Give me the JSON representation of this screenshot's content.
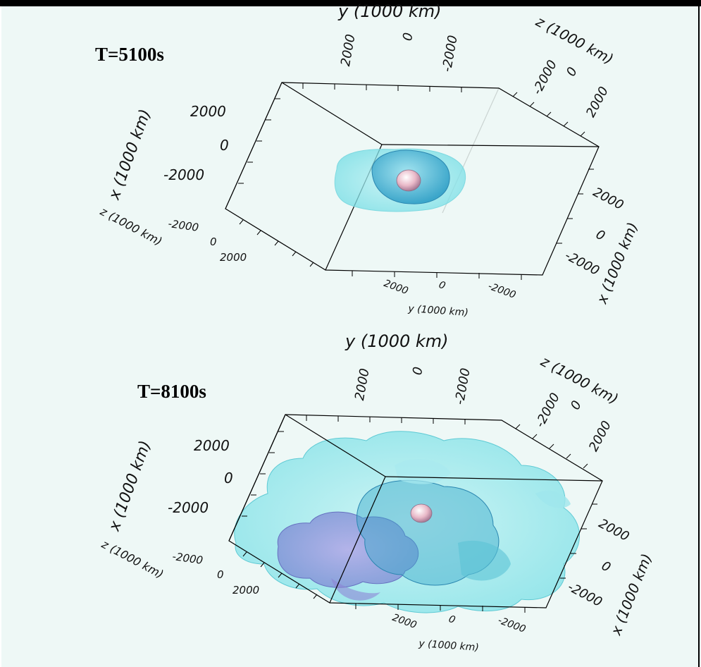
{
  "panels": [
    {
      "time_label": "T=5100s",
      "axes": {
        "y_top": {
          "title": "y (1000 km)",
          "ticks": [
            "2000",
            "0",
            "-2000"
          ]
        },
        "z_top": {
          "title": "z (1000 km)",
          "ticks": [
            "-2000",
            "0",
            "2000"
          ]
        },
        "x_left": {
          "title": "x (1000 km)",
          "ticks": [
            "2000",
            "0",
            "-2000"
          ]
        },
        "z_left": {
          "title": "z (1000 km)",
          "ticks": [
            "-2000",
            "0",
            "2000"
          ]
        },
        "x_right": {
          "title": "x (1000 km)",
          "ticks": [
            "2000",
            "0",
            "-2000"
          ]
        },
        "y_bottom": {
          "title": "y (1000 km)",
          "ticks": [
            "2000",
            "0",
            "-2000"
          ]
        }
      }
    },
    {
      "time_label": "T=8100s",
      "axes": {
        "y_top": {
          "title": "y (1000 km)",
          "ticks": [
            "2000",
            "0",
            "-2000"
          ]
        },
        "z_top": {
          "title": "z (1000 km)",
          "ticks": [
            "-2000",
            "0",
            "2000"
          ]
        },
        "x_left": {
          "title": "x (1000 km)",
          "ticks": [
            "2000",
            "0",
            "-2000"
          ]
        },
        "z_left": {
          "title": "z (1000 km)",
          "ticks": [
            "-2000",
            "0",
            "2000"
          ]
        },
        "x_right": {
          "title": "x (1000 km)",
          "ticks": [
            "2000",
            "0",
            "-2000"
          ]
        },
        "y_bottom": {
          "title": "y (1000 km)",
          "ticks": [
            "2000",
            "0",
            "-2000"
          ]
        }
      }
    }
  ],
  "colors": {
    "background": "#eef8f6",
    "outer_shell": "#7fe6ea",
    "inner_shell": "#3fb6d8",
    "core": "#e8b8c8",
    "inner_mix": "#8a8fd8",
    "frame_line": "#000000"
  }
}
